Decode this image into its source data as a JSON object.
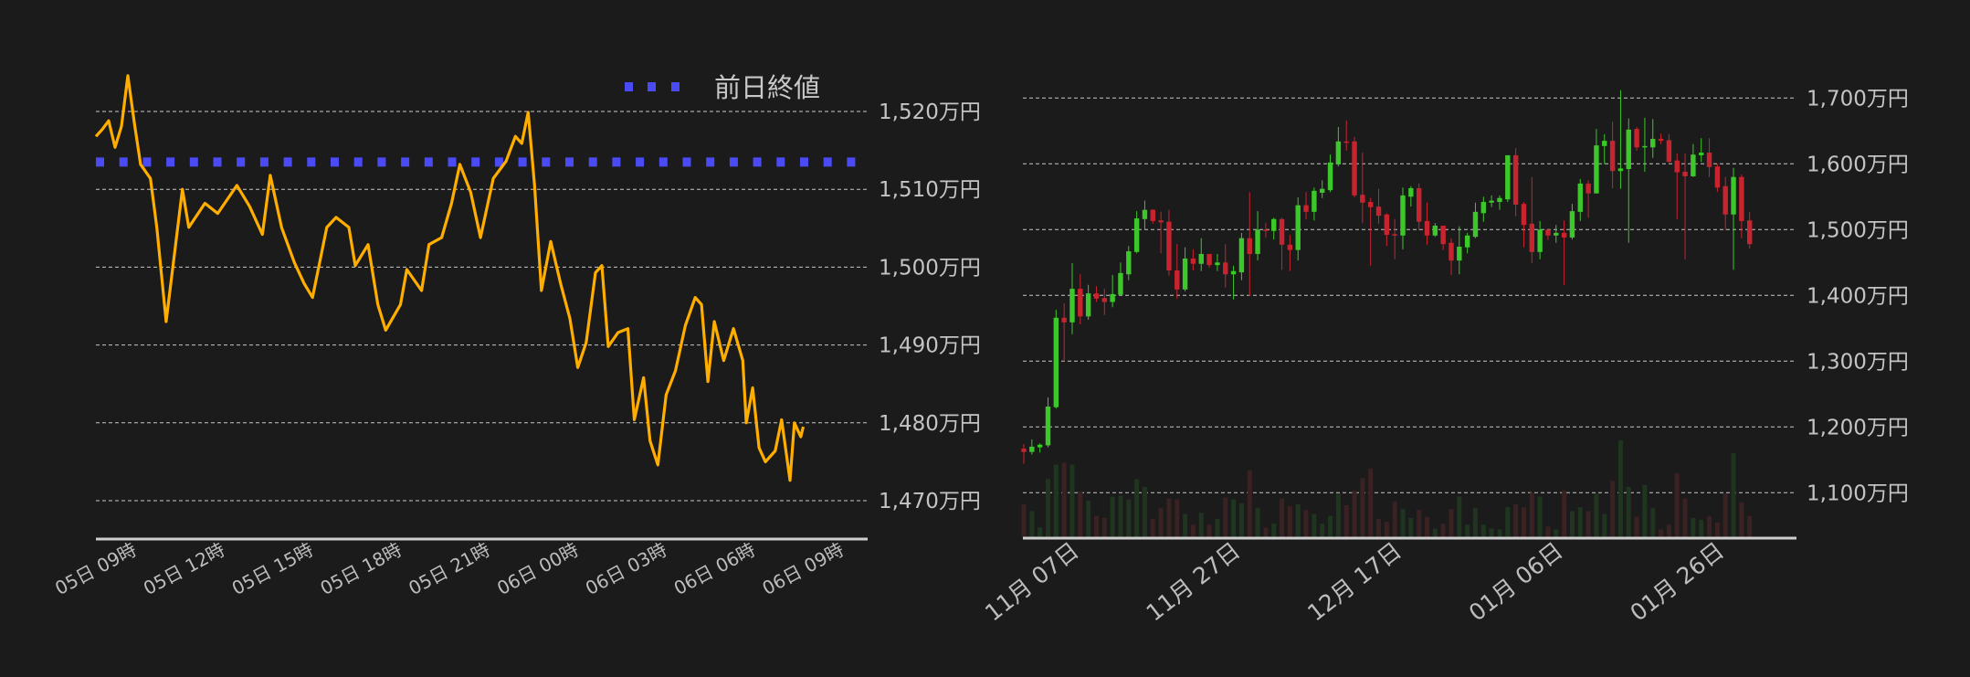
{
  "colors": {
    "background": "#1b1b1b",
    "line": "#ffae00",
    "prev_close": "#4b4bf5",
    "up": "#3cc82a",
    "down": "#c8242f",
    "volume_up": "#1f3520",
    "volume_down": "#3a2222"
  },
  "chart_data": [
    {
      "type": "line",
      "legend": {
        "label": "前日終値",
        "position": "top-right"
      },
      "previous_close": 1513.5,
      "y_unit": "万円",
      "ylim": [
        1465,
        1527
      ],
      "yticks": [
        1520,
        1510,
        1500,
        1490,
        1480,
        1470
      ],
      "ytick_labels": [
        "1,520万円",
        "1,510万円",
        "1,500万円",
        "1,490万円",
        "1,480万円",
        "1,470万円"
      ],
      "xtick_labels": [
        "05日 09時",
        "05日 12時",
        "05日 15時",
        "05日 18時",
        "05日 21時",
        "06日 00時",
        "06日 03時",
        "06日 06時",
        "06日 09時"
      ],
      "grid": true,
      "points": [
        [
          "05 09:00",
          1516.8
        ],
        [
          "05 09:13",
          1517.7
        ],
        [
          "05 09:26",
          1518.8
        ],
        [
          "05 09:39",
          1515.4
        ],
        [
          "05 09:52",
          1518.1
        ],
        [
          "05 10:05",
          1524.6
        ],
        [
          "05 10:18",
          1518.6
        ],
        [
          "05 10:31",
          1513.2
        ],
        [
          "05 10:51",
          1511.4
        ],
        [
          "05 11:04",
          1505.1
        ],
        [
          "05 11:23",
          1493.0
        ],
        [
          "05 11:43",
          1503.3
        ],
        [
          "05 11:56",
          1510.0
        ],
        [
          "05 12:09",
          1505.1
        ],
        [
          "05 12:42",
          1508.2
        ],
        [
          "05 13:08",
          1506.9
        ],
        [
          "05 13:47",
          1510.5
        ],
        [
          "05 14:13",
          1507.8
        ],
        [
          "05 14:39",
          1504.2
        ],
        [
          "05 14:55",
          1511.8
        ],
        [
          "05 15:18",
          1505.1
        ],
        [
          "05 15:44",
          1500.6
        ],
        [
          "05 16:04",
          1497.9
        ],
        [
          "05 16:21",
          1496.1
        ],
        [
          "05 16:50",
          1505.1
        ],
        [
          "05 17:09",
          1506.4
        ],
        [
          "05 17:35",
          1505.1
        ],
        [
          "05 17:48",
          1500.2
        ],
        [
          "05 18:14",
          1502.9
        ],
        [
          "05 18:34",
          1495.2
        ],
        [
          "05 18:50",
          1491.9
        ],
        [
          "05 19:20",
          1495.2
        ],
        [
          "05 19:33",
          1499.7
        ],
        [
          "05 20:03",
          1497.0
        ],
        [
          "05 20:18",
          1502.9
        ],
        [
          "05 20:44",
          1503.8
        ],
        [
          "05 21:04",
          1508.2
        ],
        [
          "05 21:21",
          1513.2
        ],
        [
          "05 21:43",
          1509.6
        ],
        [
          "05 22:03",
          1503.8
        ],
        [
          "05 22:29",
          1511.4
        ],
        [
          "05 22:55",
          1513.6
        ],
        [
          "05 23:14",
          1516.8
        ],
        [
          "05 23:27",
          1515.9
        ],
        [
          "05 23:40",
          1519.9
        ],
        [
          "05 23:53",
          1510.5
        ],
        [
          "06 00:07",
          1497.0
        ],
        [
          "06 00:26",
          1503.3
        ],
        [
          "06 00:46",
          1497.9
        ],
        [
          "06 01:05",
          1493.4
        ],
        [
          "06 01:21",
          1487.1
        ],
        [
          "06 01:38",
          1490.3
        ],
        [
          "06 01:57",
          1499.3
        ],
        [
          "06 02:10",
          1500.2
        ],
        [
          "06 02:23",
          1489.8
        ],
        [
          "06 02:43",
          1491.6
        ],
        [
          "06 03:03",
          1492.1
        ],
        [
          "06 03:16",
          1480.4
        ],
        [
          "06 03:35",
          1485.8
        ],
        [
          "06 03:48",
          1477.7
        ],
        [
          "06 04:04",
          1474.6
        ],
        [
          "06 04:21",
          1483.6
        ],
        [
          "06 04:40",
          1486.7
        ],
        [
          "06 05:00",
          1492.5
        ],
        [
          "06 05:20",
          1496.1
        ],
        [
          "06 05:33",
          1495.2
        ],
        [
          "06 05:46",
          1485.3
        ],
        [
          "06 05:59",
          1493.0
        ],
        [
          "06 06:18",
          1488.0
        ],
        [
          "06 06:38",
          1492.1
        ],
        [
          "06 06:57",
          1488.0
        ],
        [
          "06 07:04",
          1480.0
        ],
        [
          "06 07:17",
          1484.5
        ],
        [
          "06 07:30",
          1476.8
        ],
        [
          "06 07:43",
          1475.0
        ],
        [
          "06 08:03",
          1476.4
        ],
        [
          "06 08:16",
          1480.4
        ],
        [
          "06 08:33",
          1472.6
        ],
        [
          "06 08:42",
          1480.0
        ],
        [
          "06 08:55",
          1478.2
        ],
        [
          "06 09:00",
          1479.5
        ]
      ]
    },
    {
      "type": "candlestick",
      "y_unit": "万円",
      "ylim": [
        1035,
        1720
      ],
      "yticks": [
        1700,
        1600,
        1500,
        1400,
        1300,
        1200,
        1100
      ],
      "ytick_labels": [
        "1,700万円",
        "1,600万円",
        "1,500万円",
        "1,400万円",
        "1,300万円",
        "1,200万円",
        "1,100万円"
      ],
      "xtick_labels": [
        "11月 07日",
        "11月 27日",
        "12月 17日",
        "01月 06日",
        "01月 26日"
      ],
      "grid": true,
      "first_date": "10-31",
      "ohlc": [
        [
          1167,
          1174,
          1144,
          1162
        ],
        [
          1162,
          1181,
          1158,
          1170
        ],
        [
          1169,
          1175,
          1161,
          1173
        ],
        [
          1172,
          1245,
          1169,
          1231
        ],
        [
          1230,
          1378,
          1228,
          1366
        ],
        [
          1366,
          1388,
          1300,
          1359
        ],
        [
          1359,
          1449,
          1341,
          1410
        ],
        [
          1410,
          1432,
          1356,
          1368
        ],
        [
          1368,
          1416,
          1363,
          1403
        ],
        [
          1403,
          1414,
          1390,
          1395
        ],
        [
          1396,
          1410,
          1370,
          1390
        ],
        [
          1390,
          1431,
          1382,
          1402
        ],
        [
          1401,
          1450,
          1400,
          1434
        ],
        [
          1432,
          1475,
          1423,
          1467
        ],
        [
          1466,
          1528,
          1464,
          1517
        ],
        [
          1516,
          1544,
          1500,
          1530
        ],
        [
          1530,
          1531,
          1509,
          1513
        ],
        [
          1514,
          1527,
          1464,
          1511
        ],
        [
          1512,
          1530,
          1430,
          1438
        ],
        [
          1438,
          1478,
          1395,
          1409
        ],
        [
          1409,
          1473,
          1406,
          1456
        ],
        [
          1456,
          1470,
          1438,
          1448
        ],
        [
          1448,
          1487,
          1437,
          1463
        ],
        [
          1463,
          1463,
          1442,
          1446
        ],
        [
          1446,
          1463,
          1437,
          1450
        ],
        [
          1450,
          1478,
          1412,
          1432
        ],
        [
          1432,
          1445,
          1394,
          1437
        ],
        [
          1435,
          1495,
          1423,
          1487
        ],
        [
          1487,
          1557,
          1399,
          1463
        ],
        [
          1463,
          1528,
          1453,
          1500
        ],
        [
          1500,
          1510,
          1488,
          1498
        ],
        [
          1498,
          1518,
          1485,
          1516
        ],
        [
          1516,
          1518,
          1439,
          1477
        ],
        [
          1477,
          1492,
          1437,
          1469
        ],
        [
          1469,
          1549,
          1453,
          1537
        ],
        [
          1537,
          1557,
          1516,
          1527
        ],
        [
          1527,
          1564,
          1514,
          1559
        ],
        [
          1556,
          1575,
          1548,
          1562
        ],
        [
          1560,
          1614,
          1557,
          1602
        ],
        [
          1599,
          1656,
          1596,
          1634
        ],
        [
          1634,
          1666,
          1620,
          1632
        ],
        [
          1634,
          1641,
          1549,
          1552
        ],
        [
          1553,
          1617,
          1510,
          1541
        ],
        [
          1542,
          1548,
          1445,
          1534
        ],
        [
          1535,
          1562,
          1509,
          1521
        ],
        [
          1523,
          1525,
          1475,
          1492
        ],
        [
          1493,
          1516,
          1455,
          1491
        ],
        [
          1491,
          1564,
          1470,
          1552
        ],
        [
          1550,
          1566,
          1535,
          1563
        ],
        [
          1563,
          1570,
          1499,
          1512
        ],
        [
          1513,
          1541,
          1477,
          1491
        ],
        [
          1491,
          1510,
          1489,
          1506
        ],
        [
          1506,
          1506,
          1469,
          1478
        ],
        [
          1480,
          1487,
          1431,
          1453
        ],
        [
          1453,
          1505,
          1432,
          1474
        ],
        [
          1473,
          1495,
          1464,
          1491
        ],
        [
          1489,
          1541,
          1487,
          1527
        ],
        [
          1525,
          1550,
          1512,
          1542
        ],
        [
          1541,
          1552,
          1534,
          1544
        ],
        [
          1542,
          1552,
          1530,
          1548
        ],
        [
          1546,
          1613,
          1542,
          1613
        ],
        [
          1613,
          1624,
          1520,
          1538
        ],
        [
          1539,
          1542,
          1473,
          1507
        ],
        [
          1509,
          1580,
          1449,
          1466
        ],
        [
          1466,
          1513,
          1455,
          1500
        ],
        [
          1500,
          1500,
          1484,
          1491
        ],
        [
          1491,
          1507,
          1480,
          1495
        ],
        [
          1495,
          1514,
          1416,
          1488
        ],
        [
          1488,
          1539,
          1485,
          1528
        ],
        [
          1527,
          1577,
          1513,
          1570
        ],
        [
          1570,
          1575,
          1518,
          1555
        ],
        [
          1555,
          1653,
          1555,
          1628
        ],
        [
          1627,
          1645,
          1600,
          1635
        ],
        [
          1635,
          1664,
          1563,
          1589
        ],
        [
          1589,
          1712,
          1562,
          1593
        ],
        [
          1592,
          1669,
          1480,
          1652
        ],
        [
          1653,
          1656,
          1620,
          1625
        ],
        [
          1626,
          1670,
          1588,
          1627
        ],
        [
          1625,
          1668,
          1609,
          1638
        ],
        [
          1638,
          1646,
          1630,
          1635
        ],
        [
          1636,
          1645,
          1602,
          1603
        ],
        [
          1605,
          1616,
          1516,
          1587
        ],
        [
          1588,
          1616,
          1455,
          1581
        ],
        [
          1581,
          1630,
          1580,
          1614
        ],
        [
          1613,
          1639,
          1603,
          1617
        ],
        [
          1617,
          1639,
          1580,
          1595
        ],
        [
          1596,
          1600,
          1557,
          1564
        ],
        [
          1566,
          1580,
          1499,
          1523
        ],
        [
          1523,
          1594,
          1439,
          1580
        ],
        [
          1580,
          1584,
          1487,
          1513
        ],
        [
          1514,
          1527,
          1471,
          1478
        ]
      ],
      "volume_relative_pct": [
        34,
        27,
        10,
        60,
        75,
        77,
        75,
        47,
        38,
        22,
        20,
        42,
        43,
        39,
        60,
        52,
        19,
        30,
        40,
        39,
        24,
        13,
        25,
        13,
        19,
        41,
        39,
        35,
        69,
        30,
        10,
        14,
        40,
        32,
        34,
        28,
        24,
        14,
        22,
        45,
        33,
        48,
        61,
        71,
        19,
        16,
        37,
        29,
        20,
        28,
        21,
        9,
        14,
        29,
        42,
        13,
        30,
        13,
        9,
        8,
        31,
        34,
        31,
        46,
        42,
        11,
        8,
        48,
        27,
        31,
        27,
        45,
        24,
        58,
        100,
        52,
        21,
        54,
        30,
        8,
        13,
        66,
        40,
        20,
        18,
        22,
        15,
        45,
        87,
        36,
        22
      ]
    }
  ]
}
